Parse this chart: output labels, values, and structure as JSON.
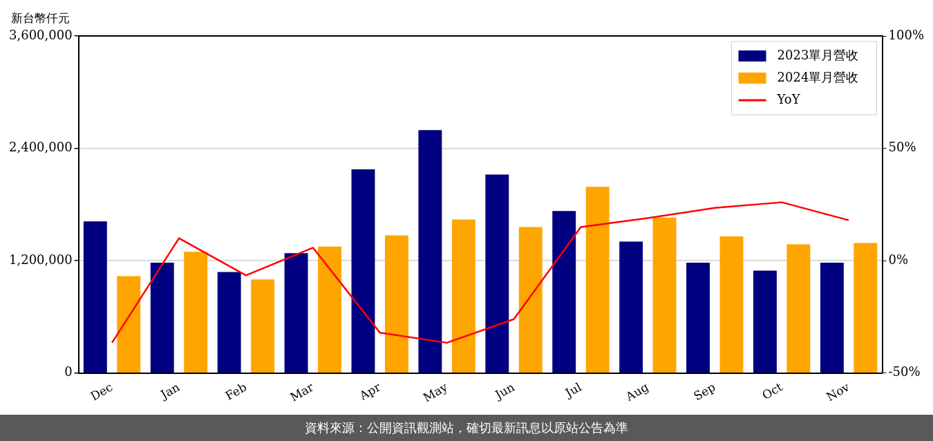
{
  "chart_data": {
    "type": "bar",
    "ylabel": "新台幣仟元",
    "categories": [
      "Dec",
      "Jan",
      "Feb",
      "Mar",
      "Apr",
      "May",
      "Jun",
      "Jul",
      "Aug",
      "Sep",
      "Oct",
      "Nov"
    ],
    "series": [
      {
        "name": "2023單月營收",
        "color": "#000080",
        "values": [
          1620000,
          1180000,
          1080000,
          1280000,
          2175000,
          2595000,
          2120000,
          1730000,
          1405000,
          1180000,
          1095000,
          1180000
        ]
      },
      {
        "name": "2024單月營收",
        "color": "#ffa500",
        "values": [
          1035000,
          1295000,
          1000000,
          1350000,
          1470000,
          1640000,
          1560000,
          1990000,
          1660000,
          1460000,
          1375000,
          1390000
        ]
      },
      {
        "name": "YoY",
        "type": "line",
        "axis": "y2",
        "color": "#ff0000",
        "values": [
          -36.5,
          10,
          -6.5,
          5.8,
          -32,
          -36.5,
          -26,
          15,
          19,
          23.5,
          26,
          18
        ]
      }
    ],
    "ylim": [
      0,
      3600000
    ],
    "yticks": [
      {
        "value": 0,
        "label": "0"
      },
      {
        "value": 1200000,
        "label": "1,200,000"
      },
      {
        "value": 2400000,
        "label": "2,400,000"
      },
      {
        "value": 3600000,
        "label": "3,600,000"
      }
    ],
    "y2lim": [
      -50,
      100
    ],
    "y2ticks": [
      {
        "value": -50,
        "label": "-50%"
      },
      {
        "value": 0,
        "label": "0%"
      },
      {
        "value": 50,
        "label": "50%"
      },
      {
        "value": 100,
        "label": "100%"
      }
    ],
    "grid": "y",
    "legend": "top right",
    "marker": "none",
    "line_style": "solid",
    "annotations": [
      "資料來源：公開資訊觀測站，確切最新訊息以原站公告為準"
    ]
  }
}
